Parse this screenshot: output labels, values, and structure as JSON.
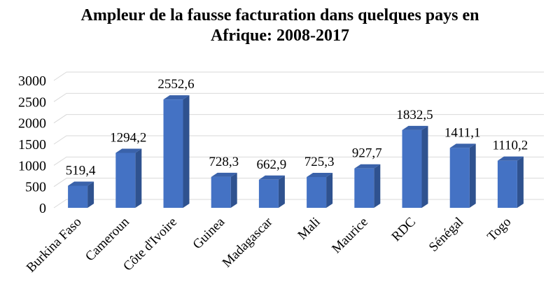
{
  "chart_data": {
    "type": "bar",
    "title": "Ampleur de la fausse facturation dans quelques pays en Afrique: 2008-2017",
    "title_lines": [
      "Ampleur de la fausse facturation dans quelques pays en",
      "Afrique: 2008-2017"
    ],
    "categories": [
      "Burkina Faso",
      "Cameroun",
      "Côte d'Ivoire",
      "Guinea",
      "Madagascar",
      "Mali",
      "Maurice",
      "RDC",
      "Sénégal",
      "Togo"
    ],
    "values": [
      519.4,
      1294.2,
      2552.6,
      728.3,
      662.9,
      725.3,
      927.7,
      1832.5,
      1411.1,
      1110.2
    ],
    "value_labels": [
      "519,4",
      "1294,2",
      "2552,6",
      "728,3",
      "662,9",
      "725,3",
      "927,7",
      "1832,5",
      "1411,1",
      "1110,2"
    ],
    "y_ticks": [
      "0",
      "500",
      "1000",
      "1500",
      "2000",
      "2500",
      "3000"
    ],
    "xlabel": "",
    "ylabel": "",
    "ylim": [
      0,
      3000
    ],
    "grid": true,
    "style": "3d-column",
    "colors": {
      "bar_front": "#4472C4",
      "bar_side": "#2F528F",
      "bar_top": "#3A62AA",
      "grid": "#d9d9d9"
    }
  }
}
